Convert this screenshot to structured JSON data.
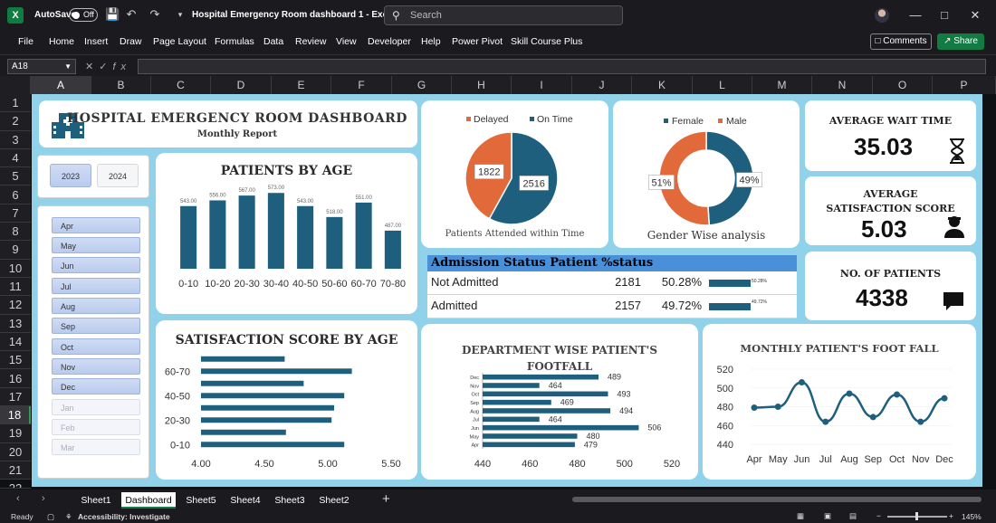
{
  "window": {
    "autosave_label": "AutoSave",
    "autosave_state": "Off",
    "title": "Hospital Emergency Room dashboard 1  -  Excel",
    "search_placeholder": "Search"
  },
  "ribbon": {
    "tabs": [
      "File",
      "Home",
      "Insert",
      "Draw",
      "Page Layout",
      "Formulas",
      "Data",
      "Review",
      "View",
      "Developer",
      "Help",
      "Power Pivot",
      "Skill Course Plus"
    ],
    "comments_label": "Comments",
    "share_label": "Share"
  },
  "formula_bar": {
    "name_box": "A18",
    "fx": "fx"
  },
  "grid": {
    "columns": [
      "A",
      "B",
      "C",
      "D",
      "E",
      "F",
      "G",
      "H",
      "I",
      "J",
      "K",
      "L",
      "M",
      "N",
      "O",
      "P"
    ],
    "rows": [
      "1",
      "2",
      "3",
      "4",
      "5",
      "6",
      "7",
      "8",
      "9",
      "10",
      "11",
      "12",
      "13",
      "14",
      "15",
      "16",
      "17",
      "18",
      "19",
      "20",
      "21",
      "22"
    ],
    "selected_column": "A",
    "selected_row": "18"
  },
  "dashboard": {
    "header": {
      "title": "Hospital Emergency Room Dashboard",
      "subtitle": "Monthly Report"
    },
    "year_slicer": {
      "items": [
        "2023",
        "2024"
      ]
    },
    "month_slicer": {
      "items": [
        {
          "label": "Apr",
          "active": true
        },
        {
          "label": "May",
          "active": true
        },
        {
          "label": "Jun",
          "active": true
        },
        {
          "label": "Jul",
          "active": true
        },
        {
          "label": "Aug",
          "active": true
        },
        {
          "label": "Sep",
          "active": true
        },
        {
          "label": "Oct",
          "active": true
        },
        {
          "label": "Nov",
          "active": true
        },
        {
          "label": "Dec",
          "active": true
        },
        {
          "label": "Jan",
          "active": false
        },
        {
          "label": "Feb",
          "active": false
        },
        {
          "label": "Mar",
          "active": false
        }
      ]
    },
    "kpis": {
      "avg_wait": {
        "title": "Average Wait Time",
        "value": "35.03"
      },
      "avg_satisfaction": {
        "title": "Average Satisfaction Score",
        "value": "5.03"
      },
      "patients": {
        "title": "No. of Patients",
        "value": "4338"
      }
    },
    "admission": {
      "header": "Admission Status  Patient  %status",
      "rows": [
        {
          "status": "Not Admitted",
          "patients": "2181",
          "percent": "50.28%",
          "bar_label": "50.28%",
          "fraction": 0.5028
        },
        {
          "status": "Admitted",
          "patients": "2157",
          "percent": "49.72%",
          "bar_label": "49.72%",
          "fraction": 0.4972
        }
      ]
    }
  },
  "sheets": {
    "tabs": [
      "Sheet1",
      "Dashboard",
      "Sheet5",
      "Sheet4",
      "Sheet3",
      "Sheet2"
    ],
    "active": "Dashboard"
  },
  "status": {
    "ready": "Ready",
    "accessibility": "Accessibility: Investigate",
    "zoom": "145%"
  },
  "colors": {
    "primary": "#1e5f7e",
    "secondary": "#e2693a",
    "canvas": "#8fd2ea",
    "header_blue": "#4a90d9"
  },
  "chart_data": [
    {
      "type": "bar",
      "title": "Patients by Age",
      "categories": [
        "0-10",
        "10-20",
        "20-30",
        "30-40",
        "40-50",
        "50-60",
        "60-70",
        "70-80"
      ],
      "values": [
        543,
        556,
        567,
        573,
        543,
        518,
        551,
        487
      ],
      "labels": [
        "543.00",
        "556.00",
        "567.00",
        "573.00",
        "543.00",
        "518.00",
        "551.00",
        "487.00"
      ],
      "ylim": [
        400,
        590
      ]
    },
    {
      "type": "pie",
      "title": "Patients Attended within Time",
      "categories": [
        "Delayed",
        "On Time"
      ],
      "values": [
        1822,
        2516
      ],
      "labels": [
        "1822",
        "2516"
      ]
    },
    {
      "type": "pie",
      "title": "Gender Wise analysis",
      "donut": true,
      "categories": [
        "Female",
        "Male"
      ],
      "values": [
        51,
        49
      ],
      "labels": [
        "51%",
        "49%"
      ]
    },
    {
      "type": "bar",
      "orientation": "horizontal",
      "title": "Satisfaction Score by Age",
      "categories": [
        "0-10",
        "10-20",
        "20-30",
        "30-40",
        "40-50",
        "50-60",
        "60-70",
        "70-80"
      ],
      "tick_labels": [
        "0-10",
        "20-30",
        "40-50",
        "60-70"
      ],
      "values": [
        5.13,
        4.67,
        5.03,
        5.05,
        5.13,
        4.81,
        5.19,
        4.66
      ],
      "xticks": [
        "4.00",
        "4.50",
        "5.00",
        "5.50"
      ],
      "xlim": [
        4.0,
        5.5
      ]
    },
    {
      "type": "bar",
      "orientation": "horizontal",
      "title": "Department Wise Patient's Footfall",
      "categories": [
        "Apr",
        "May",
        "Jun",
        "Jul",
        "Aug",
        "Sep",
        "Oct",
        "Nov",
        "Dec"
      ],
      "values": [
        479,
        480,
        506,
        464,
        494,
        469,
        493,
        464,
        489
      ],
      "xticks": [
        "440",
        "460",
        "480",
        "500",
        "520"
      ],
      "xlim": [
        440,
        520
      ]
    },
    {
      "type": "line",
      "title": "Monthly Patient's Foot Fall",
      "categories": [
        "Apr",
        "May",
        "Jun",
        "Jul",
        "Aug",
        "Sep",
        "Oct",
        "Nov",
        "Dec"
      ],
      "values": [
        479,
        480,
        506,
        464,
        494,
        469,
        493,
        464,
        489
      ],
      "yticks": [
        "440",
        "460",
        "480",
        "500",
        "520"
      ],
      "ylim": [
        440,
        520
      ]
    }
  ]
}
